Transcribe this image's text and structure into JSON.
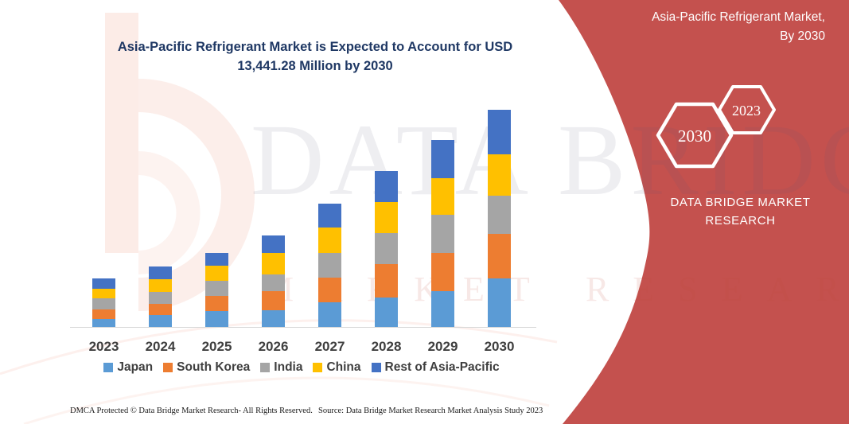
{
  "side_panel": {
    "background_color": "#C4514E",
    "title_line1": "Asia-Pacific Refrigerant Market,",
    "title_line2": "By 2030",
    "badges": [
      {
        "label": "2030"
      },
      {
        "label": "2023"
      }
    ],
    "brand_line1": "DATA BRIDGE MARKET",
    "brand_line2": "RESEARCH"
  },
  "watermark": {
    "line1": "DATA BRIDGE",
    "line2": "MARKET RESEARCH"
  },
  "chart_data": {
    "type": "bar",
    "stacked": true,
    "title": "Asia-Pacific Refrigerant Market is Expected to Account for USD 13,441.28 Million by 2030",
    "unit": "USD Million",
    "values_estimated_from_pixels": true,
    "categories": [
      "2023",
      "2024",
      "2025",
      "2026",
      "2027",
      "2028",
      "2029",
      "2030"
    ],
    "series": [
      {
        "name": "Japan",
        "color": "#5B9BD5",
        "values": [
          540,
          780,
          1030,
          1080,
          1570,
          1860,
          2260,
          3040
        ]
      },
      {
        "name": "South Korea",
        "color": "#ED7D31",
        "values": [
          590,
          690,
          930,
          1180,
          1520,
          2060,
          2350,
          2750
        ]
      },
      {
        "name": "India",
        "color": "#A5A5A5",
        "values": [
          690,
          740,
          930,
          1030,
          1520,
          1910,
          2350,
          2350
        ]
      },
      {
        "name": "China",
        "color": "#FFC000",
        "values": [
          590,
          780,
          930,
          1320,
          1570,
          1910,
          2260,
          2550
        ]
      },
      {
        "name": "Rest of Asia-Pacific",
        "color": "#4472C4",
        "values": [
          640,
          780,
          780,
          1080,
          1470,
          1910,
          2350,
          2750
        ]
      }
    ],
    "totals": [
      3050,
      3770,
      4600,
      5690,
      7650,
      9650,
      11570,
      13441.28
    ],
    "annotation_total_2030": "USD 13,441.28 Million",
    "ylim": [
      0,
      13450
    ],
    "grid": false,
    "legend_position": "bottom",
    "y_axis_labels_shown": false
  },
  "footer": {
    "left": "DMCA Protected © Data Bridge Market Research-  All Rights Reserved.",
    "source": "Source: Data Bridge Market Research  Market Analysis Study 2023"
  }
}
